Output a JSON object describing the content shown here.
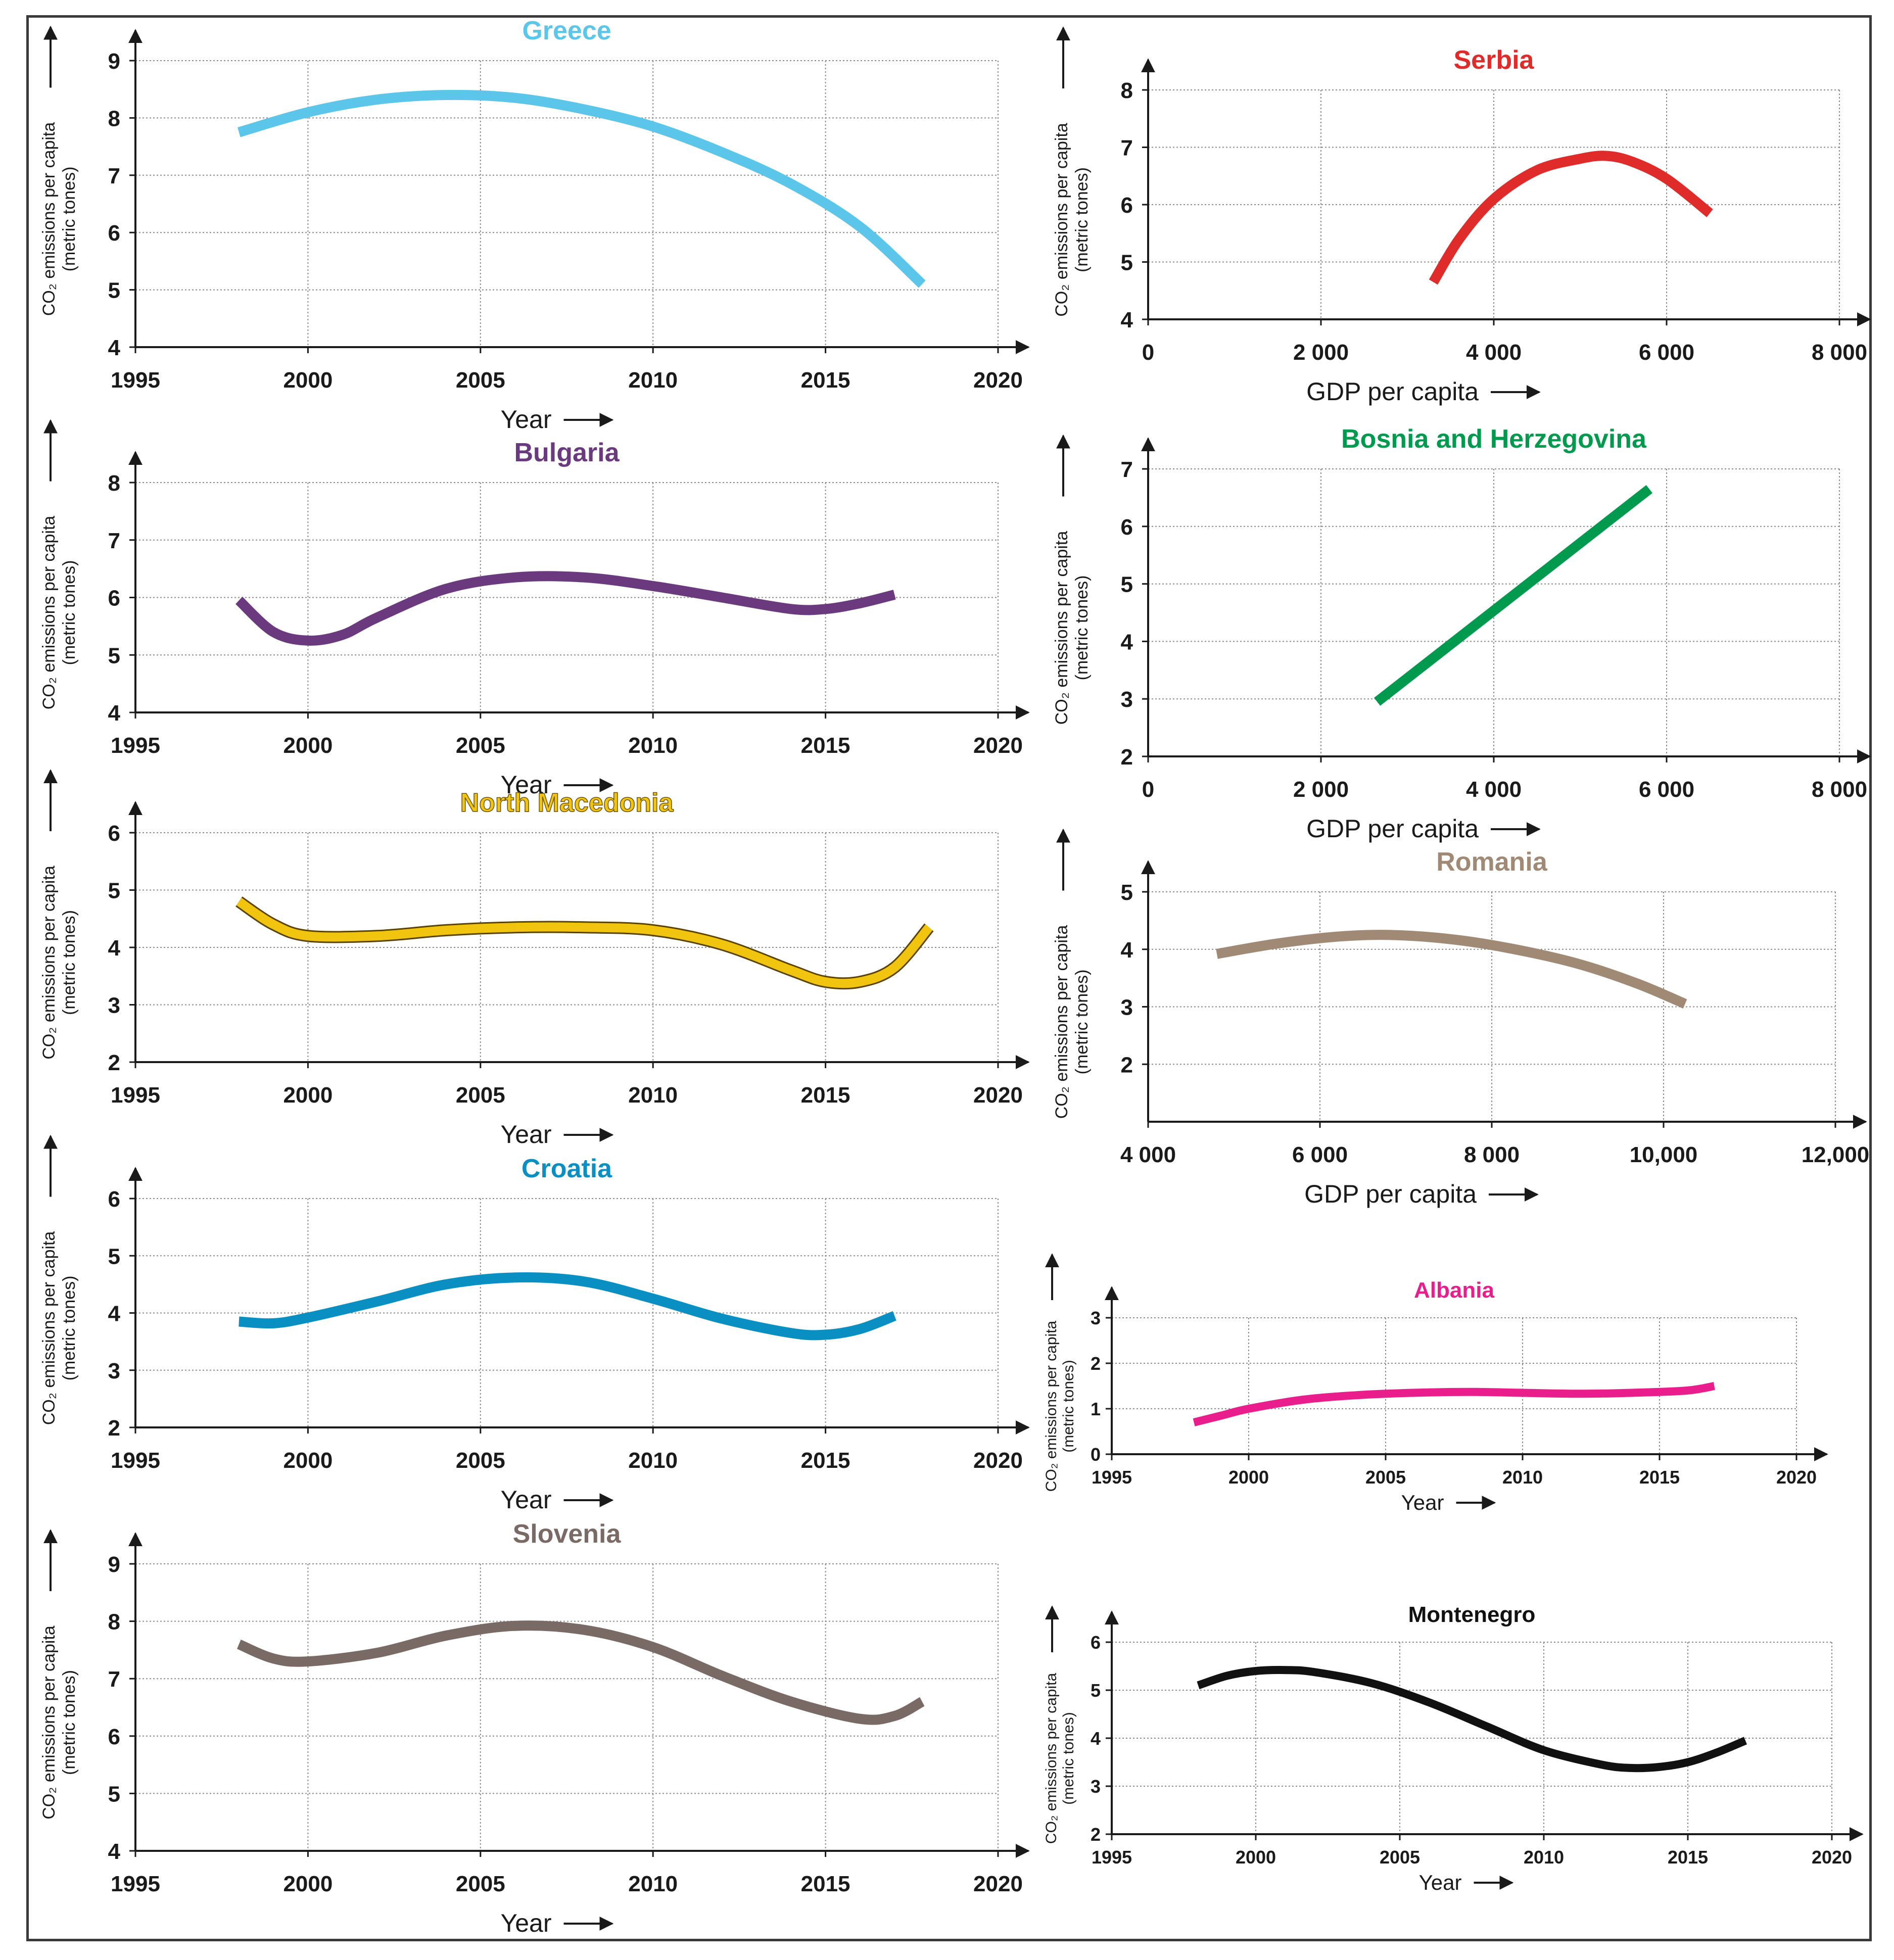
{
  "ylabel_line1": "CO₂ emissions per capita",
  "ylabel_line2": "(metric tones)",
  "charts": [
    {
      "id": "greece",
      "type": "line",
      "title": "Greece",
      "color": "#5bc5ea",
      "xlabel": "Year",
      "xlim": [
        1995,
        2020
      ],
      "xticks": [
        1995,
        2000,
        2005,
        2010,
        2015,
        2020
      ],
      "xtick_labels": [
        "1995",
        "2000",
        "2005",
        "2010",
        "2015",
        "2020"
      ],
      "ylim": [
        4,
        9
      ],
      "yticks": [
        4,
        5,
        6,
        7,
        8,
        9
      ],
      "series": [
        {
          "name": "Greece",
          "x": [
            1998,
            2000,
            2002,
            2004,
            2006,
            2008,
            2010,
            2012,
            2014,
            2016,
            2017.8
          ],
          "y": [
            7.75,
            8.1,
            8.32,
            8.4,
            8.35,
            8.15,
            7.85,
            7.4,
            6.85,
            6.1,
            5.1
          ]
        }
      ]
    },
    {
      "id": "bulgaria",
      "type": "line",
      "title": "Bulgaria",
      "color": "#6b3a7e",
      "xlabel": "Year",
      "xlim": [
        1995,
        2020
      ],
      "xticks": [
        1995,
        2000,
        2005,
        2010,
        2015,
        2020
      ],
      "xtick_labels": [
        "1995",
        "2000",
        "2005",
        "2010",
        "2015",
        "2020"
      ],
      "ylim": [
        4,
        8
      ],
      "yticks": [
        4,
        5,
        6,
        7,
        8
      ],
      "series": [
        {
          "name": "Bulgaria",
          "x": [
            1998,
            1999,
            2000,
            2001,
            2002,
            2004,
            2006,
            2008,
            2010,
            2012,
            2014,
            2015,
            2016,
            2017
          ],
          "y": [
            5.95,
            5.4,
            5.25,
            5.35,
            5.65,
            6.15,
            6.35,
            6.35,
            6.2,
            6.0,
            5.8,
            5.8,
            5.9,
            6.05
          ]
        }
      ]
    },
    {
      "id": "north-macedonia",
      "type": "line",
      "title": "North Macedonia",
      "color": "#f1c40f",
      "xlabel": "Year",
      "xlim": [
        1995,
        2020
      ],
      "xticks": [
        1995,
        2000,
        2005,
        2010,
        2015,
        2020
      ],
      "xtick_labels": [
        "1995",
        "2000",
        "2005",
        "2010",
        "2015",
        "2020"
      ],
      "ylim": [
        2,
        6
      ],
      "yticks": [
        2,
        3,
        4,
        5,
        6
      ],
      "series": [
        {
          "name": "North Macedonia",
          "x": [
            1998,
            1999,
            2000,
            2002,
            2004,
            2006,
            2008,
            2010,
            2012,
            2014,
            2015,
            2016,
            2017,
            2018
          ],
          "y": [
            4.8,
            4.4,
            4.2,
            4.2,
            4.3,
            4.35,
            4.35,
            4.3,
            4.05,
            3.6,
            3.4,
            3.4,
            3.65,
            4.35
          ]
        }
      ]
    },
    {
      "id": "croatia",
      "type": "line",
      "title": "Croatia",
      "color": "#0a8fc2",
      "xlabel": "Year",
      "xlim": [
        1995,
        2020
      ],
      "xticks": [
        1995,
        2000,
        2005,
        2010,
        2015,
        2020
      ],
      "xtick_labels": [
        "1995",
        "2000",
        "2005",
        "2010",
        "2015",
        "2020"
      ],
      "ylim": [
        2,
        6
      ],
      "yticks": [
        2,
        3,
        4,
        5,
        6
      ],
      "series": [
        {
          "name": "Croatia",
          "x": [
            1998,
            1999,
            2000,
            2002,
            2004,
            2006,
            2008,
            2010,
            2012,
            2014,
            2015,
            2016,
            2017
          ],
          "y": [
            3.85,
            3.82,
            3.92,
            4.2,
            4.5,
            4.62,
            4.55,
            4.25,
            3.9,
            3.65,
            3.62,
            3.72,
            3.95
          ]
        }
      ]
    },
    {
      "id": "slovenia",
      "type": "line",
      "title": "Slovenia",
      "color": "#7a6a66",
      "xlabel": "Year",
      "xlim": [
        1995,
        2020
      ],
      "xticks": [
        1995,
        2000,
        2005,
        2010,
        2015,
        2020
      ],
      "xtick_labels": [
        "1995",
        "2000",
        "2005",
        "2010",
        "2015",
        "2020"
      ],
      "ylim": [
        4,
        9
      ],
      "yticks": [
        4,
        5,
        6,
        7,
        8,
        9
      ],
      "series": [
        {
          "name": "Slovenia",
          "x": [
            1998,
            1999,
            2000,
            2002,
            2004,
            2006,
            2008,
            2010,
            2012,
            2014,
            2016,
            2017,
            2017.8
          ],
          "y": [
            7.6,
            7.35,
            7.3,
            7.45,
            7.75,
            7.92,
            7.85,
            7.55,
            7.05,
            6.6,
            6.3,
            6.35,
            6.6
          ]
        }
      ]
    },
    {
      "id": "serbia",
      "type": "line",
      "title": "Serbia",
      "color": "#e02b2b",
      "xlabel": "GDP per capita",
      "xlim": [
        0,
        8000
      ],
      "xticks": [
        0,
        2000,
        4000,
        6000,
        8000
      ],
      "xtick_labels": [
        "0",
        "2 000",
        "4 000",
        "6 000",
        "8 000"
      ],
      "ylim": [
        4,
        8
      ],
      "yticks": [
        4,
        5,
        6,
        7,
        8
      ],
      "series": [
        {
          "name": "Serbia",
          "x": [
            3300,
            3600,
            4000,
            4500,
            5000,
            5300,
            5600,
            6000,
            6500
          ],
          "y": [
            4.65,
            5.4,
            6.1,
            6.6,
            6.8,
            6.85,
            6.75,
            6.45,
            5.85
          ]
        }
      ]
    },
    {
      "id": "bosnia",
      "type": "line",
      "title": "Bosnia and Herzegovina",
      "color": "#009a4e",
      "xlabel": "GDP per capita",
      "xlim": [
        0,
        8000
      ],
      "xticks": [
        0,
        2000,
        4000,
        6000,
        8000
      ],
      "xtick_labels": [
        "0",
        "2 000",
        "4 000",
        "6 000",
        "8 000"
      ],
      "ylim": [
        2,
        7
      ],
      "yticks": [
        2,
        3,
        4,
        5,
        6,
        7
      ],
      "series": [
        {
          "name": "Bosnia and Herzegovina",
          "x": [
            2650,
            5800
          ],
          "y": [
            2.95,
            6.65
          ]
        }
      ]
    },
    {
      "id": "romania",
      "type": "line",
      "title": "Romania",
      "color": "#a08a76",
      "xlabel": "GDP per capita",
      "xlim": [
        4000,
        12000
      ],
      "xticks": [
        4000,
        6000,
        8000,
        10000,
        12000
      ],
      "xtick_labels": [
        "4 000",
        "6 000",
        "8 000",
        "10,000",
        "12,000"
      ],
      "ylim": [
        1,
        5
      ],
      "yticks": [
        2,
        3,
        4,
        5
      ],
      "series": [
        {
          "name": "Romania",
          "x": [
            4800,
            5500,
            6200,
            6800,
            7500,
            8200,
            9000,
            9700,
            10250
          ],
          "y": [
            3.92,
            4.1,
            4.22,
            4.25,
            4.18,
            4.02,
            3.75,
            3.4,
            3.05
          ]
        }
      ]
    },
    {
      "id": "albania",
      "type": "line",
      "title": "Albania",
      "color": "#e91e8c",
      "xlabel": "Year",
      "xlim": [
        1995,
        2020
      ],
      "xticks": [
        1995,
        2000,
        2005,
        2010,
        2015,
        2020
      ],
      "xtick_labels": [
        "1995",
        "2000",
        "2005",
        "2010",
        "2015",
        "2020"
      ],
      "ylim": [
        0,
        3
      ],
      "yticks": [
        0,
        1,
        2,
        3
      ],
      "series": [
        {
          "name": "Albania",
          "x": [
            1998,
            1999,
            2000,
            2002,
            2004,
            2006,
            2008,
            2010,
            2012,
            2014,
            2016,
            2017
          ],
          "y": [
            0.7,
            0.85,
            1.0,
            1.2,
            1.3,
            1.35,
            1.37,
            1.35,
            1.33,
            1.35,
            1.4,
            1.5
          ]
        }
      ]
    },
    {
      "id": "montenegro",
      "type": "line",
      "title": "Montenegro",
      "color": "#111111",
      "xlabel": "Year",
      "xlim": [
        1995,
        2020
      ],
      "xticks": [
        1995,
        2000,
        2005,
        2010,
        2015,
        2020
      ],
      "xtick_labels": [
        "1995",
        "2000",
        "2005",
        "2010",
        "2015",
        "2020"
      ],
      "ylim": [
        2,
        6
      ],
      "yticks": [
        2,
        3,
        4,
        5,
        6
      ],
      "series": [
        {
          "name": "Montenegro",
          "x": [
            1998,
            1999,
            2000,
            2001,
            2002,
            2004,
            2006,
            2008,
            2010,
            2012,
            2013,
            2014,
            2015,
            2016,
            2017
          ],
          "y": [
            5.1,
            5.3,
            5.4,
            5.42,
            5.38,
            5.15,
            4.75,
            4.25,
            3.75,
            3.45,
            3.38,
            3.4,
            3.5,
            3.7,
            3.95
          ]
        }
      ]
    }
  ]
}
